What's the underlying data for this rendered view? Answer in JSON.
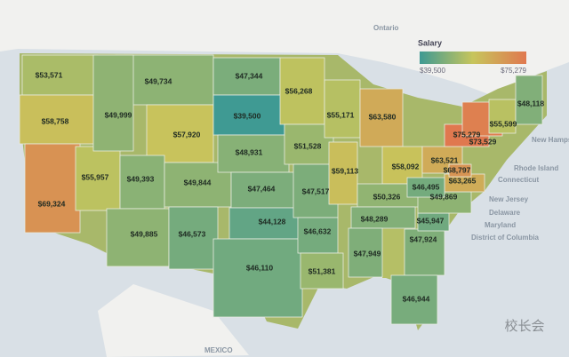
{
  "map": {
    "places": [
      "Ontario",
      "Rhode Island",
      "Connecticut",
      "New Jersey",
      "Delaware",
      "Maryland",
      "District of Columbia",
      "New Hampsh",
      "MEXICO"
    ],
    "legend": {
      "title": "Salary",
      "min": 39500,
      "min_label": "$39,500",
      "max": 75279,
      "max_label": "$75,279",
      "colors": [
        "#3f9a93",
        "#c7c55c",
        "#e0784f"
      ]
    },
    "values": [
      53571,
      58758,
      69324,
      55957,
      49734,
      49999,
      57920,
      49393,
      49885,
      49844,
      46573,
      47344,
      39500,
      48931,
      47464,
      44128,
      46110,
      56268,
      51528,
      47517,
      46632,
      51381,
      55171,
      59113,
      63580,
      58092,
      63521,
      50326,
      48289,
      47949,
      47924,
      46944,
      45947,
      49869,
      63265,
      46495,
      75279,
      73529,
      68797,
      55599,
      48118
    ],
    "value_labels": [
      "$53,571",
      "$58,758",
      "$69,324",
      "$55,957",
      "$49,734",
      "$49,999",
      "$57,920",
      "$49,393",
      "$49,885",
      "$49,844",
      "$46,573",
      "$47,344",
      "$39,500",
      "$48,931",
      "$47,464",
      "$44,128",
      "$46,110",
      "$56,268",
      "$51,528",
      "$47,517",
      "$46,632",
      "$51,381",
      "$55,171",
      "$59,113",
      "$63,580",
      "$58,092",
      "$63,521",
      "$50,326",
      "$48,289",
      "$47,949",
      "$47,924",
      "$46,944",
      "$45,947",
      "$49,869",
      "$63,265",
      "$46,495",
      "$75,279",
      "$73,529",
      "$68,797",
      "$55,599",
      "$48,118"
    ],
    "watermark": "校长会"
  }
}
